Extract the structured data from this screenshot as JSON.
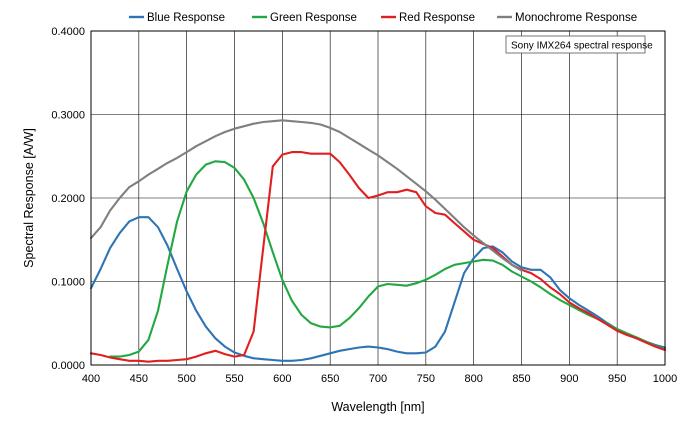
{
  "chart_data": {
    "type": "line",
    "title": "",
    "xlabel": "Wavelength [nm]",
    "ylabel": "Spectral Response [A/W]",
    "xlim": [
      400,
      1000
    ],
    "ylim": [
      0,
      0.4
    ],
    "xticks": [
      400,
      450,
      500,
      550,
      600,
      650,
      700,
      750,
      800,
      850,
      900,
      950,
      1000
    ],
    "yticks": [
      0,
      0.1,
      0.2,
      0.3,
      0.4
    ],
    "xtick_labels": [
      "400",
      "450",
      "500",
      "550",
      "600",
      "650",
      "700",
      "750",
      "800",
      "850",
      "900",
      "950",
      "1000"
    ],
    "ytick_labels": [
      "0.0000",
      "0.1000",
      "0.2000",
      "0.3000",
      "0.4000"
    ],
    "grid": true,
    "legend_position": "top",
    "annotation": "Sony IMX264 spectral response",
    "series": [
      {
        "name": "Blue Response",
        "color": "#2e74b5",
        "points": [
          [
            400,
            0.092
          ],
          [
            410,
            0.115
          ],
          [
            420,
            0.14
          ],
          [
            430,
            0.158
          ],
          [
            440,
            0.172
          ],
          [
            450,
            0.177
          ],
          [
            460,
            0.177
          ],
          [
            470,
            0.165
          ],
          [
            480,
            0.143
          ],
          [
            490,
            0.115
          ],
          [
            500,
            0.088
          ],
          [
            510,
            0.065
          ],
          [
            520,
            0.046
          ],
          [
            530,
            0.032
          ],
          [
            540,
            0.022
          ],
          [
            550,
            0.015
          ],
          [
            560,
            0.011
          ],
          [
            570,
            0.008
          ],
          [
            580,
            0.007
          ],
          [
            590,
            0.006
          ],
          [
            600,
            0.005
          ],
          [
            610,
            0.005
          ],
          [
            620,
            0.006
          ],
          [
            630,
            0.008
          ],
          [
            640,
            0.011
          ],
          [
            650,
            0.014
          ],
          [
            660,
            0.017
          ],
          [
            670,
            0.019
          ],
          [
            680,
            0.021
          ],
          [
            690,
            0.022
          ],
          [
            700,
            0.021
          ],
          [
            710,
            0.019
          ],
          [
            720,
            0.016
          ],
          [
            730,
            0.014
          ],
          [
            740,
            0.014
          ],
          [
            750,
            0.015
          ],
          [
            760,
            0.022
          ],
          [
            770,
            0.04
          ],
          [
            780,
            0.075
          ],
          [
            790,
            0.11
          ],
          [
            800,
            0.128
          ],
          [
            810,
            0.14
          ],
          [
            820,
            0.142
          ],
          [
            830,
            0.135
          ],
          [
            840,
            0.124
          ],
          [
            850,
            0.117
          ],
          [
            860,
            0.114
          ],
          [
            870,
            0.114
          ],
          [
            880,
            0.105
          ],
          [
            890,
            0.09
          ],
          [
            900,
            0.08
          ],
          [
            910,
            0.072
          ],
          [
            920,
            0.065
          ],
          [
            930,
            0.058
          ],
          [
            940,
            0.05
          ],
          [
            950,
            0.043
          ],
          [
            960,
            0.038
          ],
          [
            970,
            0.033
          ],
          [
            980,
            0.028
          ],
          [
            990,
            0.024
          ],
          [
            1000,
            0.021
          ]
        ]
      },
      {
        "name": "Green Response",
        "color": "#22a842",
        "points": [
          [
            420,
            0.01
          ],
          [
            430,
            0.01
          ],
          [
            440,
            0.012
          ],
          [
            450,
            0.016
          ],
          [
            460,
            0.03
          ],
          [
            470,
            0.065
          ],
          [
            480,
            0.12
          ],
          [
            490,
            0.172
          ],
          [
            500,
            0.208
          ],
          [
            510,
            0.228
          ],
          [
            520,
            0.24
          ],
          [
            530,
            0.244
          ],
          [
            540,
            0.243
          ],
          [
            550,
            0.236
          ],
          [
            560,
            0.222
          ],
          [
            570,
            0.2
          ],
          [
            580,
            0.17
          ],
          [
            590,
            0.135
          ],
          [
            600,
            0.102
          ],
          [
            610,
            0.077
          ],
          [
            620,
            0.06
          ],
          [
            630,
            0.05
          ],
          [
            640,
            0.046
          ],
          [
            650,
            0.045
          ],
          [
            660,
            0.047
          ],
          [
            670,
            0.056
          ],
          [
            680,
            0.068
          ],
          [
            690,
            0.082
          ],
          [
            700,
            0.094
          ],
          [
            710,
            0.097
          ],
          [
            720,
            0.096
          ],
          [
            730,
            0.095
          ],
          [
            740,
            0.098
          ],
          [
            750,
            0.102
          ],
          [
            760,
            0.108
          ],
          [
            770,
            0.115
          ],
          [
            780,
            0.12
          ],
          [
            790,
            0.122
          ],
          [
            800,
            0.124
          ],
          [
            810,
            0.126
          ],
          [
            820,
            0.125
          ],
          [
            830,
            0.12
          ],
          [
            840,
            0.112
          ],
          [
            850,
            0.106
          ],
          [
            860,
            0.1
          ],
          [
            870,
            0.093
          ],
          [
            880,
            0.085
          ],
          [
            890,
            0.078
          ],
          [
            900,
            0.072
          ],
          [
            910,
            0.066
          ],
          [
            920,
            0.06
          ],
          [
            930,
            0.055
          ],
          [
            940,
            0.049
          ],
          [
            950,
            0.043
          ],
          [
            960,
            0.038
          ],
          [
            970,
            0.033
          ],
          [
            980,
            0.028
          ],
          [
            990,
            0.023
          ],
          [
            1000,
            0.019
          ]
        ]
      },
      {
        "name": "Red Response",
        "color": "#e02020",
        "points": [
          [
            400,
            0.014
          ],
          [
            410,
            0.012
          ],
          [
            420,
            0.009
          ],
          [
            430,
            0.007
          ],
          [
            440,
            0.005
          ],
          [
            450,
            0.005
          ],
          [
            460,
            0.004
          ],
          [
            470,
            0.005
          ],
          [
            480,
            0.005
          ],
          [
            490,
            0.006
          ],
          [
            500,
            0.007
          ],
          [
            510,
            0.01
          ],
          [
            520,
            0.014
          ],
          [
            530,
            0.017
          ],
          [
            540,
            0.013
          ],
          [
            550,
            0.01
          ],
          [
            560,
            0.012
          ],
          [
            570,
            0.04
          ],
          [
            580,
            0.14
          ],
          [
            590,
            0.238
          ],
          [
            600,
            0.252
          ],
          [
            610,
            0.255
          ],
          [
            620,
            0.255
          ],
          [
            630,
            0.253
          ],
          [
            640,
            0.253
          ],
          [
            650,
            0.253
          ],
          [
            660,
            0.243
          ],
          [
            670,
            0.228
          ],
          [
            680,
            0.212
          ],
          [
            690,
            0.2
          ],
          [
            700,
            0.203
          ],
          [
            710,
            0.207
          ],
          [
            720,
            0.207
          ],
          [
            730,
            0.21
          ],
          [
            740,
            0.207
          ],
          [
            750,
            0.19
          ],
          [
            760,
            0.182
          ],
          [
            770,
            0.18
          ],
          [
            780,
            0.17
          ],
          [
            790,
            0.16
          ],
          [
            800,
            0.15
          ],
          [
            810,
            0.145
          ],
          [
            820,
            0.14
          ],
          [
            830,
            0.13
          ],
          [
            840,
            0.12
          ],
          [
            850,
            0.114
          ],
          [
            860,
            0.11
          ],
          [
            870,
            0.103
          ],
          [
            880,
            0.093
          ],
          [
            890,
            0.085
          ],
          [
            900,
            0.075
          ],
          [
            910,
            0.068
          ],
          [
            920,
            0.062
          ],
          [
            930,
            0.055
          ],
          [
            940,
            0.048
          ],
          [
            950,
            0.041
          ],
          [
            960,
            0.036
          ],
          [
            970,
            0.032
          ],
          [
            980,
            0.027
          ],
          [
            990,
            0.022
          ],
          [
            1000,
            0.018
          ]
        ]
      },
      {
        "name": "Monochrome Response",
        "color": "#7f7f7f",
        "points": [
          [
            400,
            0.152
          ],
          [
            410,
            0.165
          ],
          [
            420,
            0.185
          ],
          [
            430,
            0.2
          ],
          [
            440,
            0.213
          ],
          [
            450,
            0.22
          ],
          [
            460,
            0.228
          ],
          [
            470,
            0.235
          ],
          [
            480,
            0.242
          ],
          [
            490,
            0.248
          ],
          [
            500,
            0.255
          ],
          [
            510,
            0.262
          ],
          [
            520,
            0.268
          ],
          [
            530,
            0.274
          ],
          [
            540,
            0.279
          ],
          [
            550,
            0.283
          ],
          [
            560,
            0.286
          ],
          [
            570,
            0.289
          ],
          [
            580,
            0.291
          ],
          [
            590,
            0.292
          ],
          [
            600,
            0.293
          ],
          [
            610,
            0.292
          ],
          [
            620,
            0.291
          ],
          [
            630,
            0.29
          ],
          [
            640,
            0.288
          ],
          [
            650,
            0.284
          ],
          [
            660,
            0.279
          ],
          [
            670,
            0.272
          ],
          [
            680,
            0.265
          ],
          [
            690,
            0.258
          ],
          [
            700,
            0.251
          ],
          [
            710,
            0.243
          ],
          [
            720,
            0.235
          ],
          [
            730,
            0.226
          ],
          [
            740,
            0.217
          ],
          [
            750,
            0.208
          ],
          [
            760,
            0.198
          ],
          [
            770,
            0.187
          ],
          [
            780,
            0.176
          ],
          [
            790,
            0.165
          ],
          [
            800,
            0.155
          ],
          [
            810,
            0.146
          ],
          [
            820,
            0.137
          ],
          [
            830,
            0.128
          ],
          [
            840,
            0.12
          ],
          [
            850,
            0.113
          ]
        ]
      }
    ]
  }
}
